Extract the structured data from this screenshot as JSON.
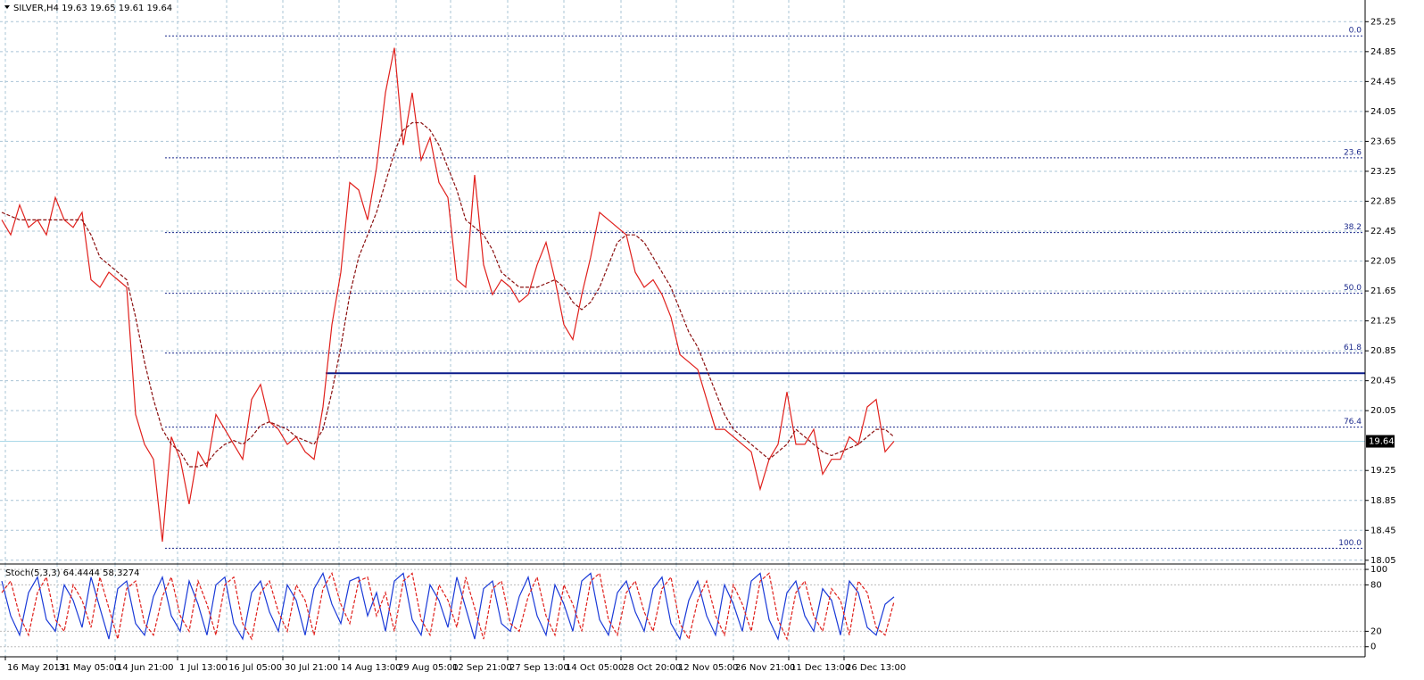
{
  "chart_data": [
    {
      "type": "line",
      "title": "SILVER,H4  19.63 19.65 19.61 19.64",
      "xlim": [
        -0.2,
        152.8
      ],
      "ylim": [
        18.0,
        25.54
      ],
      "yticks": [
        18.05,
        18.45,
        18.85,
        19.25,
        20.05,
        20.45,
        20.85,
        21.25,
        21.65,
        22.05,
        22.45,
        22.85,
        23.25,
        23.65,
        24.05,
        24.45,
        24.85,
        25.25
      ],
      "xticks": [
        {
          "value": 0.4,
          "label": "16 May 2013"
        },
        {
          "value": 6.2,
          "label": "31 May 05:00"
        },
        {
          "value": 12.7,
          "label": "14 Jun 21:00"
        },
        {
          "value": 19.7,
          "label": "1 Jul 13:00"
        },
        {
          "value": 25.2,
          "label": "16 Jul 05:00"
        },
        {
          "value": 31.5,
          "label": "30 Jul 21:00"
        },
        {
          "value": 37.8,
          "label": "14 Aug 13:00"
        },
        {
          "value": 44.2,
          "label": "29 Aug 05:00"
        },
        {
          "value": 50.3,
          "label": "12 Sep 21:00"
        },
        {
          "value": 56.7,
          "label": "27 Sep 13:00"
        },
        {
          "value": 63.0,
          "label": "14 Oct 05:00"
        },
        {
          "value": 69.4,
          "label": "28 Oct 20:00"
        },
        {
          "value": 75.6,
          "label": "12 Nov 05:00"
        },
        {
          "value": 82.0,
          "label": "26 Nov 21:00"
        },
        {
          "value": 88.2,
          "label": "11 Dec 13:00"
        },
        {
          "value": 94.4,
          "label": "26 Dec 13:00"
        }
      ],
      "grid": true,
      "series": [
        {
          "name": "SILVER",
          "color": "#e0201c",
          "values": [
            22.6,
            22.4,
            22.8,
            22.5,
            22.6,
            22.4,
            22.9,
            22.6,
            22.5,
            22.7,
            21.8,
            21.7,
            21.9,
            21.8,
            21.7,
            20.0,
            19.6,
            19.4,
            18.3,
            19.7,
            19.4,
            18.8,
            19.5,
            19.3,
            20.0,
            19.8,
            19.6,
            19.4,
            20.2,
            20.4,
            19.9,
            19.8,
            19.6,
            19.7,
            19.5,
            19.4,
            20.1,
            21.2,
            21.9,
            23.1,
            23.0,
            22.6,
            23.3,
            24.3,
            24.9,
            23.6,
            24.3,
            23.4,
            23.7,
            23.1,
            22.9,
            21.8,
            21.7,
            23.2,
            22.0,
            21.6,
            21.8,
            21.7,
            21.5,
            21.6,
            22.0,
            22.3,
            21.8,
            21.2,
            21.0,
            21.6,
            22.1,
            22.7,
            22.6,
            22.5,
            22.4,
            21.9,
            21.7,
            21.8,
            21.6,
            21.3,
            20.8,
            20.7,
            20.6,
            20.2,
            19.8,
            19.8,
            19.7,
            19.6,
            19.5,
            19.0,
            19.4,
            19.6,
            20.3,
            19.6,
            19.6,
            19.8,
            19.2,
            19.4,
            19.4,
            19.7,
            19.6,
            20.1,
            20.2,
            19.5,
            19.64
          ]
        },
        {
          "name": "MA",
          "color": "#8b1010",
          "dashed": true,
          "values": [
            22.7,
            22.65,
            22.6,
            22.6,
            22.6,
            22.6,
            22.6,
            22.6,
            22.6,
            22.6,
            22.4,
            22.1,
            22.0,
            21.9,
            21.8,
            21.3,
            20.7,
            20.2,
            19.8,
            19.6,
            19.5,
            19.3,
            19.3,
            19.35,
            19.5,
            19.6,
            19.65,
            19.6,
            19.7,
            19.85,
            19.9,
            19.85,
            19.8,
            19.7,
            19.65,
            19.6,
            19.8,
            20.3,
            20.9,
            21.6,
            22.1,
            22.4,
            22.7,
            23.1,
            23.5,
            23.8,
            23.9,
            23.9,
            23.8,
            23.6,
            23.3,
            23.0,
            22.6,
            22.5,
            22.4,
            22.2,
            21.9,
            21.8,
            21.7,
            21.7,
            21.7,
            21.75,
            21.8,
            21.7,
            21.5,
            21.4,
            21.5,
            21.7,
            22.0,
            22.3,
            22.4,
            22.4,
            22.3,
            22.1,
            21.9,
            21.7,
            21.4,
            21.1,
            20.9,
            20.6,
            20.3,
            20.0,
            19.8,
            19.7,
            19.6,
            19.5,
            19.4,
            19.5,
            19.6,
            19.8,
            19.7,
            19.6,
            19.5,
            19.45,
            19.5,
            19.55,
            19.6,
            19.7,
            19.8,
            19.8,
            19.7
          ]
        }
      ],
      "fib_start": 18.3,
      "fib_levels": [
        {
          "value": 25.06,
          "label": "0.0"
        },
        {
          "value": 23.43,
          "label": "23.6"
        },
        {
          "value": 22.43,
          "label": "38.2"
        },
        {
          "value": 21.62,
          "label": "50.0"
        },
        {
          "value": 20.82,
          "label": "61.8"
        },
        {
          "value": 19.83,
          "label": "76.4"
        },
        {
          "value": 18.21,
          "label": "100.0"
        }
      ],
      "level_start": 36.3,
      "level": 20.55,
      "price": 19.64
    },
    {
      "type": "line",
      "title": "Stoch(5,3,3) 64.4444 58.3274",
      "ylim": [
        -13,
        107
      ],
      "yticks": [
        0,
        20,
        80,
        100
      ],
      "series": [
        {
          "name": "Main",
          "color": "#1a3ad8",
          "values": [
            85,
            40,
            15,
            70,
            90,
            35,
            20,
            80,
            60,
            25,
            90,
            50,
            10,
            75,
            85,
            30,
            15,
            65,
            90,
            40,
            20,
            85,
            55,
            15,
            80,
            90,
            30,
            10,
            70,
            85,
            45,
            20,
            80,
            60,
            15,
            75,
            95,
            55,
            30,
            85,
            90,
            40,
            70,
            20,
            85,
            95,
            35,
            15,
            80,
            60,
            25,
            90,
            50,
            10,
            75,
            85,
            30,
            20,
            65,
            90,
            40,
            15,
            80,
            55,
            20,
            85,
            95,
            35,
            15,
            70,
            85,
            45,
            20,
            75,
            90,
            30,
            10,
            60,
            85,
            40,
            15,
            80,
            55,
            20,
            85,
            95,
            35,
            10,
            70,
            85,
            40,
            20,
            75,
            60,
            15,
            85,
            70,
            25,
            15,
            55,
            64.4444
          ]
        },
        {
          "name": "Signal",
          "color": "#e0201c",
          "dashed": true,
          "values": [
            70,
            85,
            40,
            15,
            70,
            90,
            35,
            20,
            80,
            60,
            25,
            90,
            50,
            10,
            75,
            85,
            30,
            15,
            65,
            90,
            40,
            20,
            85,
            55,
            15,
            80,
            90,
            30,
            10,
            70,
            85,
            45,
            20,
            80,
            60,
            15,
            75,
            95,
            55,
            30,
            85,
            90,
            40,
            70,
            20,
            85,
            95,
            35,
            15,
            80,
            60,
            25,
            90,
            50,
            10,
            75,
            85,
            30,
            20,
            65,
            90,
            40,
            15,
            80,
            55,
            20,
            85,
            95,
            35,
            15,
            70,
            85,
            45,
            20,
            75,
            90,
            30,
            10,
            60,
            85,
            40,
            15,
            80,
            55,
            20,
            85,
            95,
            35,
            10,
            70,
            85,
            40,
            20,
            75,
            60,
            15,
            85,
            70,
            25,
            15,
            58.3274
          ]
        }
      ]
    }
  ]
}
